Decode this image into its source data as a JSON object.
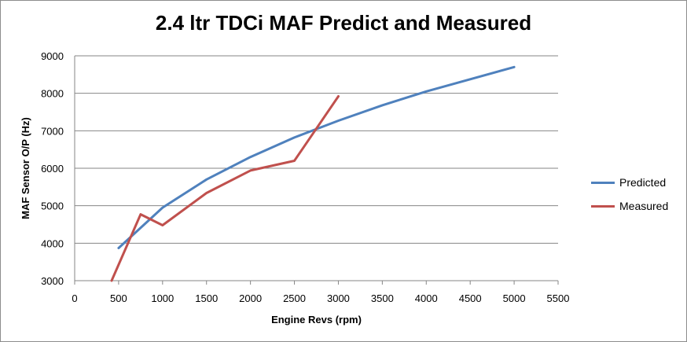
{
  "chart_data": {
    "type": "line",
    "title": "2.4 ltr TDCi MAF Predict and Measured",
    "xlabel": "Engine Revs (rpm)",
    "ylabel": "MAF Sensor O/P (Hz)",
    "xlim": [
      0,
      5500
    ],
    "ylim": [
      3000,
      9000
    ],
    "xticks": [
      0,
      500,
      1000,
      1500,
      2000,
      2500,
      3000,
      3500,
      4000,
      4500,
      5000,
      5500
    ],
    "yticks": [
      3000,
      4000,
      5000,
      6000,
      7000,
      8000,
      9000
    ],
    "grid": "horizontal",
    "legend_position": "right",
    "series": [
      {
        "name": "Predicted",
        "color": "#4f81bd",
        "x": [
          500,
          1000,
          1500,
          2000,
          2500,
          3000,
          3500,
          4000,
          5000
        ],
        "y": [
          3870,
          4950,
          5700,
          6300,
          6820,
          7270,
          7680,
          8050,
          8700
        ]
      },
      {
        "name": "Measured",
        "color": "#c0504d",
        "x": [
          420,
          750,
          1000,
          1500,
          2000,
          2500,
          3000
        ],
        "y": [
          3000,
          4770,
          4480,
          5340,
          5940,
          6200,
          7920
        ]
      }
    ]
  }
}
